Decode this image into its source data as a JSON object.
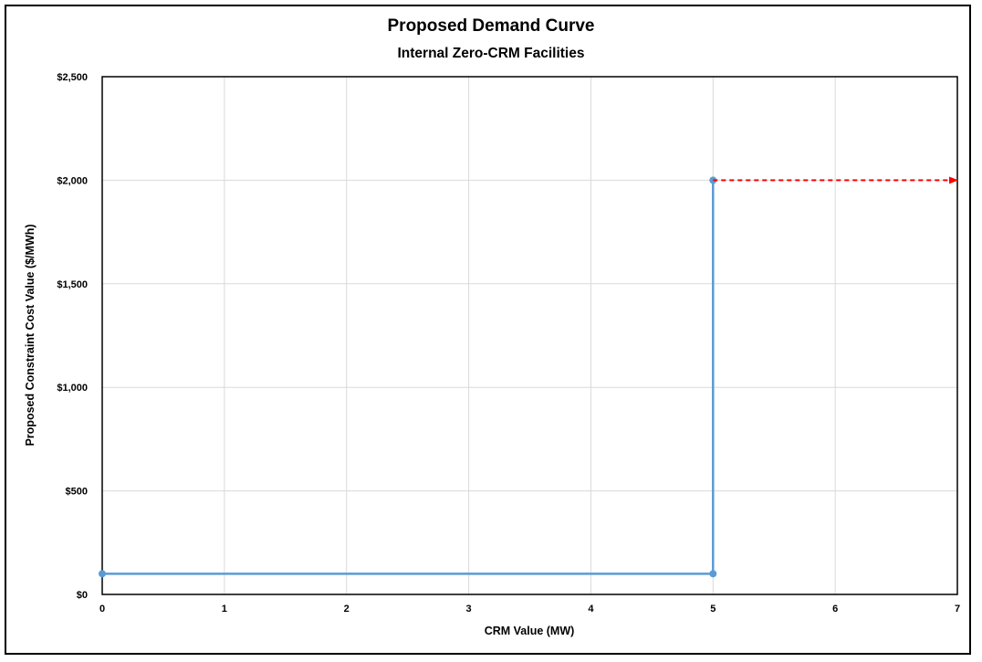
{
  "chart_data": {
    "type": "line",
    "title": "Proposed Demand Curve",
    "subtitle": "Internal Zero-CRM Facilities",
    "xlabel": "CRM Value (MW)",
    "ylabel": "Proposed Constraint Cost Value ($/MWh)",
    "xlim": [
      0,
      7
    ],
    "ylim": [
      0,
      2500
    ],
    "x_ticks": [
      0,
      1,
      2,
      3,
      4,
      5,
      6,
      7
    ],
    "x_tick_labels": [
      "0",
      "1",
      "2",
      "3",
      "4",
      "5",
      "6",
      "7"
    ],
    "y_ticks": [
      0,
      500,
      1000,
      1500,
      2000,
      2500
    ],
    "y_tick_labels": [
      "$0",
      "$500",
      "$1,000",
      "$1,500",
      "$2,000",
      "$2,500"
    ],
    "grid": true,
    "series": [
      {
        "style": "solid-with-markers",
        "color": "#5b9bd5",
        "points": [
          {
            "x": 0,
            "y": 100
          },
          {
            "x": 5,
            "y": 100
          },
          {
            "x": 5,
            "y": 2000
          }
        ],
        "marker_indices": [
          0,
          1,
          2
        ]
      },
      {
        "style": "dashed-arrow",
        "color": "#ff0000",
        "points": [
          {
            "x": 5,
            "y": 2000
          },
          {
            "x": 7,
            "y": 2000
          }
        ]
      }
    ]
  }
}
